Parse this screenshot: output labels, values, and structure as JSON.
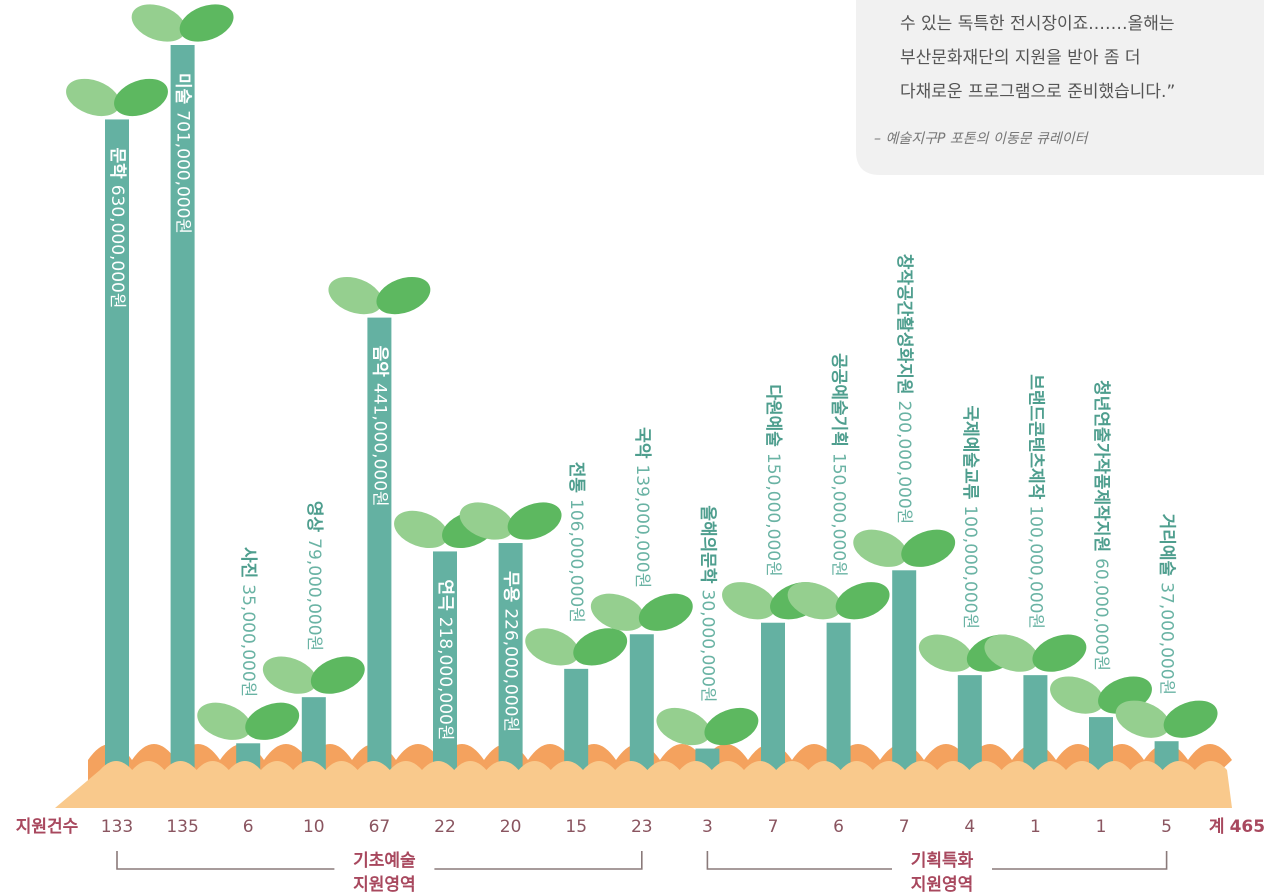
{
  "chart_data": {
    "type": "bar",
    "row_label": "지원건수",
    "total_label": "계",
    "total": 465,
    "stem_color": "#64b1a2",
    "leaf_colors": [
      "#95cf8f",
      "#5db860"
    ],
    "groups": [
      {
        "label_lines": [
          "기초예술",
          "지원영역"
        ],
        "items": [
          {
            "name": "문학",
            "value": 630000000,
            "value_label": "630,000,000원",
            "count": 133
          },
          {
            "name": "미술",
            "value": 701000000,
            "value_label": "701,000,000원",
            "count": 135
          },
          {
            "name": "사진",
            "value": 35000000,
            "value_label": "35,000,000원",
            "count": 6
          },
          {
            "name": "영상",
            "value": 79000000,
            "value_label": "79,000,000원",
            "count": 10
          },
          {
            "name": "음악",
            "value": 441000000,
            "value_label": "441,000,000원",
            "count": 67
          },
          {
            "name": "연극",
            "value": 218000000,
            "value_label": "218,000,000원",
            "count": 22
          },
          {
            "name": "무용",
            "value": 226000000,
            "value_label": "226,000,000원",
            "count": 20
          },
          {
            "name": "전통",
            "value": 106000000,
            "value_label": "106,000,000원",
            "count": 15
          },
          {
            "name": "국악",
            "value": 139000000,
            "value_label": "139,000,000원",
            "count": 23
          }
        ]
      },
      {
        "label_lines": [
          "기획특화",
          "지원영역"
        ],
        "items": [
          {
            "name": "올해의문학",
            "value": 30000000,
            "value_label": "30,000,000원",
            "count": 3
          },
          {
            "name": "다원예술",
            "value": 150000000,
            "value_label": "150,000,000원",
            "count": 7
          },
          {
            "name": "공공예술기획",
            "value": 150000000,
            "value_label": "150,000,000원",
            "count": 6
          },
          {
            "name": "창작공간활성화지원",
            "value": 200000000,
            "value_label": "200,000,000원",
            "count": 7
          },
          {
            "name": "국제예술교류",
            "value": 100000000,
            "value_label": "100,000,000원",
            "count": 4
          },
          {
            "name": "브랜드콘텐츠제작",
            "value": 100000000,
            "value_label": "100,000,000원",
            "count": 1
          },
          {
            "name": "청년연출가작품제작지원",
            "value": 60000000,
            "value_label": "60,000,000원",
            "count": 1
          },
          {
            "name": "거리예술",
            "value": 37000000,
            "value_label": "37,000,000원",
            "count": 5
          }
        ]
      }
    ]
  },
  "quote": {
    "lines": [
      "수 있는 독특한 전시장이죠.……올해는",
      "부산문화재단의 지원을 받아 좀 더",
      "다채로운 프로그램으로 준비했습니다.”"
    ],
    "source": "– 예술지구P 포톤의 이동문 큐레이터"
  }
}
